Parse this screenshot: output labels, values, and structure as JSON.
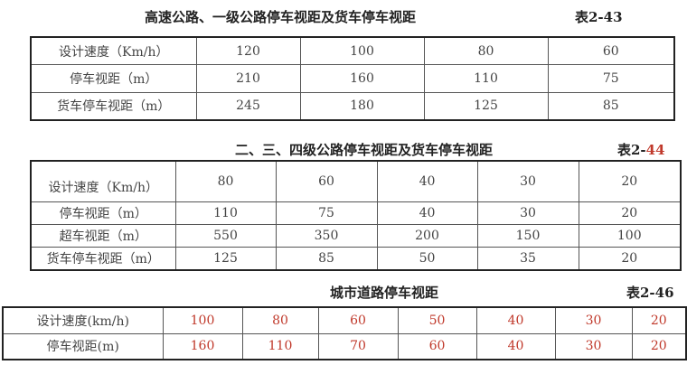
{
  "table1": {
    "title": "高速公路、一级公路停车视距及货车停车视距",
    "number": "表2-43",
    "rows": [
      {
        "label": "设计速度（Km/h）",
        "values": [
          "120",
          "100",
          "80",
          "60"
        ]
      },
      {
        "label": "停车视距（m）",
        "values": [
          "210",
          "160",
          "110",
          "75"
        ]
      },
      {
        "label": "货车停车视距（m）",
        "values": [
          "245",
          "180",
          "125",
          "85"
        ]
      }
    ]
  },
  "table2": {
    "title": "二、三、四级公路停车视距及货车停车视距",
    "number_prefix": "表2-",
    "number_suffix": "44",
    "number_suffix_color": "#c0392b",
    "rows": [
      {
        "label": "设计速度（Km/h）",
        "values": [
          "80",
          "60",
          "40",
          "30",
          "20"
        ]
      },
      {
        "label": "停车视距（m）",
        "values": [
          "110",
          "75",
          "40",
          "30",
          "20"
        ]
      },
      {
        "label": "超车视距（m）",
        "values": [
          "550",
          "350",
          "200",
          "150",
          "100"
        ]
      },
      {
        "label": "货车停车视距（m）",
        "values": [
          "125",
          "85",
          "50",
          "35",
          "20"
        ]
      }
    ]
  },
  "table3": {
    "title": "城市道路停车视距",
    "number": "表2-46",
    "value_color": "#c0392b",
    "rows": [
      {
        "label": "设计速度(km/h)",
        "values": [
          "100",
          "80",
          "60",
          "50",
          "40",
          "30",
          "20"
        ]
      },
      {
        "label": "停车视距(m)",
        "values": [
          "160",
          "110",
          "70",
          "60",
          "40",
          "30",
          "20"
        ]
      }
    ]
  }
}
